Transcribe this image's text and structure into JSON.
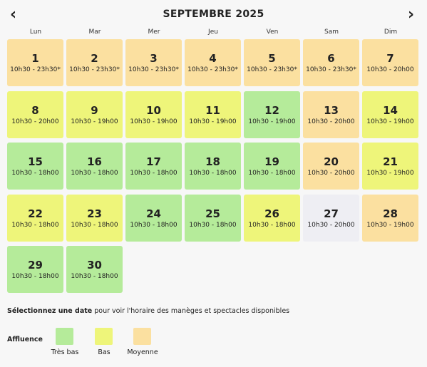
{
  "header": {
    "title": "SEPTEMBRE 2025",
    "prev": "‹",
    "next": "›"
  },
  "weekdays": [
    "Lun",
    "Mar",
    "Mer",
    "Jeu",
    "Ven",
    "Sam",
    "Dim"
  ],
  "days": [
    {
      "day": "1",
      "hours": "10h30 - 23h30*",
      "color": "#fbe0a0"
    },
    {
      "day": "2",
      "hours": "10h30 - 23h30*",
      "color": "#fbe0a0"
    },
    {
      "day": "3",
      "hours": "10h30 - 23h30*",
      "color": "#fbe0a0"
    },
    {
      "day": "4",
      "hours": "10h30 - 23h30*",
      "color": "#fbe0a0"
    },
    {
      "day": "5",
      "hours": "10h30 - 23h30*",
      "color": "#fbe0a0"
    },
    {
      "day": "6",
      "hours": "10h30 - 23h30*",
      "color": "#fbe0a0"
    },
    {
      "day": "7",
      "hours": "10h30 - 20h00",
      "color": "#fbe0a0"
    },
    {
      "day": "8",
      "hours": "10h30 - 20h00",
      "color": "#eef57a"
    },
    {
      "day": "9",
      "hours": "10h30 - 19h00",
      "color": "#eef57a"
    },
    {
      "day": "10",
      "hours": "10h30 - 19h00",
      "color": "#eef57a"
    },
    {
      "day": "11",
      "hours": "10h30 - 19h00",
      "color": "#eef57a"
    },
    {
      "day": "12",
      "hours": "10h30 - 19h00",
      "color": "#b5eb9a"
    },
    {
      "day": "13",
      "hours": "10h30 - 20h00",
      "color": "#fbe0a0"
    },
    {
      "day": "14",
      "hours": "10h30 - 19h00",
      "color": "#eef57a"
    },
    {
      "day": "15",
      "hours": "10h30 - 18h00",
      "color": "#b5eb9a"
    },
    {
      "day": "16",
      "hours": "10h30 - 18h00",
      "color": "#b5eb9a"
    },
    {
      "day": "17",
      "hours": "10h30 - 18h00",
      "color": "#b5eb9a"
    },
    {
      "day": "18",
      "hours": "10h30 - 18h00",
      "color": "#b5eb9a"
    },
    {
      "day": "19",
      "hours": "10h30 - 18h00",
      "color": "#b5eb9a"
    },
    {
      "day": "20",
      "hours": "10h30 - 20h00",
      "color": "#fbe0a0"
    },
    {
      "day": "21",
      "hours": "10h30 - 19h00",
      "color": "#eef57a"
    },
    {
      "day": "22",
      "hours": "10h30 - 18h00",
      "color": "#eef57a"
    },
    {
      "day": "23",
      "hours": "10h30 - 18h00",
      "color": "#eef57a"
    },
    {
      "day": "24",
      "hours": "10h30 - 18h00",
      "color": "#b5eb9a"
    },
    {
      "day": "25",
      "hours": "10h30 - 18h00",
      "color": "#b5eb9a"
    },
    {
      "day": "26",
      "hours": "10h30 - 18h00",
      "color": "#eef57a"
    },
    {
      "day": "27",
      "hours": "10h30 - 20h00",
      "color": "#eeeef3"
    },
    {
      "day": "28",
      "hours": "10h30 - 19h00",
      "color": "#fbe0a0"
    },
    {
      "day": "29",
      "hours": "10h30 - 18h00",
      "color": "#b5eb9a"
    },
    {
      "day": "30",
      "hours": "10h30 - 18h00",
      "color": "#b5eb9a"
    }
  ],
  "hint": {
    "bold": "Sélectionnez une date",
    "rest": " pour voir l'horaire des manèges et spectacles disponibles"
  },
  "legend": {
    "title": "Affluence",
    "items": [
      {
        "label": "Très bas",
        "color": "#b5eb9a"
      },
      {
        "label": "Bas",
        "color": "#eef57a"
      },
      {
        "label": "Moyenne",
        "color": "#fbe0a0"
      }
    ]
  }
}
